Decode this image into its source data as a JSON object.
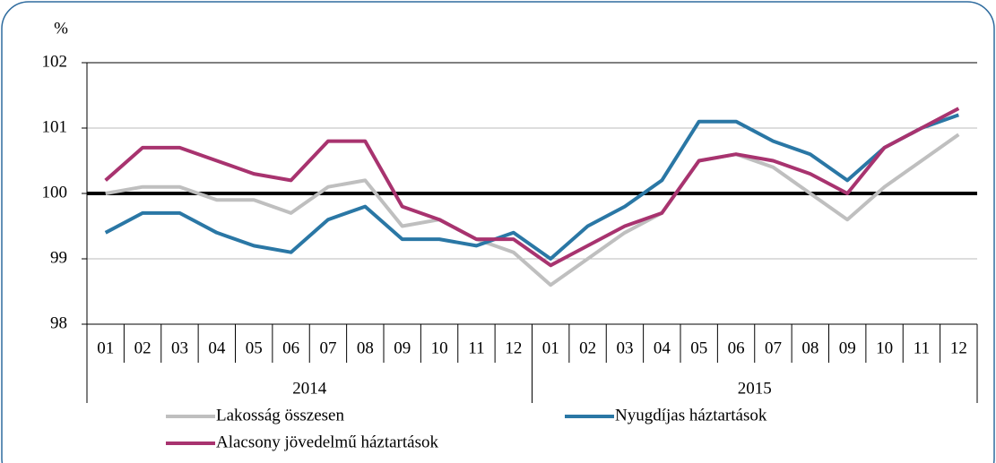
{
  "chart_data": {
    "type": "line",
    "y_label": "%",
    "categories": [
      "01",
      "02",
      "03",
      "04",
      "05",
      "06",
      "07",
      "08",
      "09",
      "10",
      "11",
      "12",
      "01",
      "02",
      "03",
      "04",
      "05",
      "06",
      "07",
      "08",
      "09",
      "10",
      "11",
      "12"
    ],
    "years": [
      "2014",
      "2015"
    ],
    "series": [
      {
        "name": "Lakosság összesen",
        "color": "#bfbfbf",
        "values": [
          100.0,
          100.1,
          100.1,
          99.9,
          99.9,
          99.7,
          100.1,
          100.2,
          99.5,
          99.6,
          99.3,
          99.1,
          98.6,
          99.0,
          99.4,
          99.7,
          100.5,
          100.6,
          100.4,
          100.0,
          99.6,
          100.1,
          100.5,
          100.9
        ]
      },
      {
        "name": "Nyugdíjas háztartások",
        "color": "#2a77a5",
        "values": [
          99.4,
          99.7,
          99.7,
          99.4,
          99.2,
          99.1,
          99.6,
          99.8,
          99.3,
          99.3,
          99.2,
          99.4,
          99.0,
          99.5,
          99.8,
          100.2,
          101.1,
          101.1,
          100.8,
          100.6,
          100.2,
          100.7,
          101.0,
          101.2
        ]
      },
      {
        "name": "Alacsony jövedelmű háztartások",
        "color": "#a8336f",
        "values": [
          100.2,
          100.7,
          100.7,
          100.5,
          100.3,
          100.2,
          100.8,
          100.8,
          99.8,
          99.6,
          99.3,
          99.3,
          98.9,
          99.2,
          99.5,
          99.7,
          100.5,
          100.6,
          100.5,
          100.3,
          100.0,
          100.7,
          101.0,
          101.3
        ]
      }
    ],
    "reference_line": 100,
    "ylim": [
      98,
      102
    ],
    "yticks": [
      98,
      99,
      100,
      101,
      102
    ],
    "grid": true
  }
}
